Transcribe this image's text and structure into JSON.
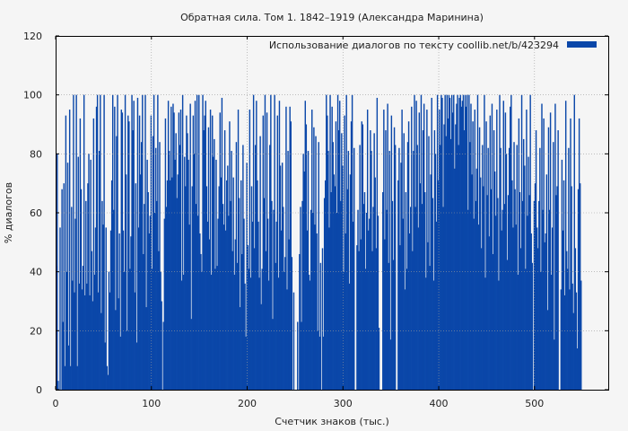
{
  "chart_data": {
    "type": "bar",
    "title": "Обратная сила. Том 1. 1842–1919 (Александра Маринина)",
    "xlabel": "Счетчик знаков (тыс.)",
    "ylabel": "% диалогов",
    "xlim": [
      0,
      577
    ],
    "ylim": [
      0,
      120
    ],
    "x_ticks": [
      0,
      100,
      200,
      300,
      400,
      500
    ],
    "y_ticks": [
      0,
      20,
      40,
      60,
      80,
      100,
      120
    ],
    "grid": true,
    "legend_position": "top-right",
    "series": [
      {
        "name": "Использование диалогов по тексту  coollib.net/b/423294",
        "color": "#0a47a9",
        "x_step": 1,
        "values": [
          42,
          80,
          3,
          0,
          55,
          0,
          68,
          23,
          70,
          8,
          93,
          40,
          77,
          15,
          95,
          8,
          62,
          37,
          100,
          33,
          58,
          100,
          8,
          79,
          36,
          92,
          68,
          34,
          42,
          100,
          32,
          64,
          36,
          70,
          80,
          32,
          78,
          47,
          30,
          92,
          39,
          55,
          96,
          100,
          33,
          81,
          100,
          26,
          64,
          56,
          100,
          16,
          55,
          8,
          5,
          40,
          33,
          54,
          71,
          100,
          61,
          96,
          27,
          86,
          100,
          31,
          53,
          18,
          95,
          94,
          54,
          40,
          100,
          73,
          20,
          93,
          91,
          41,
          52,
          100,
          88,
          98,
          33,
          70,
          16,
          99,
          55,
          93,
          73,
          84,
          100,
          46,
          63,
          100,
          28,
          78,
          67,
          53,
          59,
          93,
          41,
          86,
          100,
          60,
          82,
          64,
          100,
          47,
          84,
          40,
          30,
          0,
          23,
          58,
          92,
          62,
          71,
          98,
          81,
          71,
          96,
          72,
          97,
          94,
          78,
          87,
          65,
          73,
          94,
          83,
          95,
          37,
          100,
          39,
          79,
          69,
          93,
          87,
          78,
          56,
          97,
          24,
          69,
          93,
          80,
          98,
          63,
          100,
          59,
          100,
          53,
          46,
          40,
          100,
          88,
          93,
          98,
          69,
          57,
          89,
          51,
          95,
          39,
          93,
          79,
          85,
          41,
          78,
          42,
          58,
          69,
          94,
          72,
          99,
          63,
          56,
          88,
          54,
          71,
          76,
          59,
          91,
          64,
          81,
          47,
          72,
          39,
          51,
          84,
          43,
          95,
          65,
          28,
          71,
          46,
          83,
          58,
          36,
          18,
          77,
          49,
          41,
          95,
          38,
          69,
          57,
          100,
          48,
          83,
          98,
          71,
          57,
          38,
          86,
          29,
          41,
          93,
          65,
          100,
          47,
          94,
          58,
          37,
          83,
          100,
          64,
          24,
          61,
          100,
          43,
          57,
          93,
          38,
          98,
          76,
          54,
          77,
          62,
          40,
          45,
          96,
          34,
          81,
          51,
          96,
          91,
          45,
          0,
          33,
          0,
          0,
          0,
          23,
          0,
          46,
          62,
          23,
          64,
          80,
          74,
          98,
          90,
          54,
          81,
          39,
          37,
          61,
          95,
          60,
          89,
          56,
          86,
          53,
          20,
          84,
          18,
          43,
          0,
          48,
          18,
          65,
          71,
          100,
          93,
          81,
          55,
          100,
          67,
          96,
          84,
          73,
          69,
          91,
          60,
          100,
          88,
          98,
          64,
          87,
          76,
          40,
          93,
          53,
          100,
          68,
          81,
          36,
          73,
          91,
          100,
          57,
          82,
          0,
          0,
          49,
          61,
          47,
          83,
          51,
          91,
          90,
          63,
          67,
          41,
          60,
          95,
          54,
          58,
          88,
          81,
          47,
          62,
          87,
          72,
          48,
          99,
          59,
          21,
          0,
          0,
          0,
          67,
          95,
          51,
          88,
          61,
          97,
          43,
          81,
          17,
          93,
          64,
          44,
          89,
          83,
          0,
          0,
          71,
          82,
          49,
          77,
          95,
          58,
          87,
          34,
          67,
          41,
          84,
          91,
          53,
          62,
          96,
          47,
          81,
          100,
          62,
          98,
          83,
          55,
          94,
          70,
          100,
          63,
          88,
          97,
          67,
          38,
          95,
          50,
          86,
          42,
          73,
          99,
          65,
          37,
          88,
          80,
          57,
          100,
          71,
          95,
          83,
          100,
          99,
          62,
          90,
          100,
          86,
          100,
          92,
          100,
          99,
          85,
          100,
          94,
          100,
          75,
          90,
          97,
          100,
          83,
          99,
          100,
          96,
          98,
          100,
          88,
          100,
          96,
          100,
          61,
          100,
          84,
          97,
          73,
          91,
          58,
          95,
          64,
          75,
          100,
          56,
          89,
          72,
          48,
          83,
          69,
          100,
          38,
          91,
          66,
          82,
          52,
          93,
          68,
          97,
          46,
          88,
          74,
          59,
          95,
          65,
          37,
          100,
          82,
          54,
          61,
          98,
          63,
          94,
          80,
          44,
          66,
          82,
          96,
          100,
          71,
          55,
          84,
          68,
          56,
          83,
          39,
          92,
          67,
          48,
          100,
          64,
          85,
          76,
          41,
          95,
          59,
          79,
          66,
          100,
          53,
          43,
          0,
          64,
          70,
          88,
          55,
          48,
          64,
          82,
          40,
          97,
          61,
          92,
          50,
          53,
          73,
          27,
          89,
          61,
          94,
          39,
          55,
          84,
          17,
          97,
          66,
          69,
          88,
          0,
          0,
          34,
          78,
          54,
          71,
          32,
          98,
          47,
          41,
          82,
          34,
          92,
          69,
          36,
          26,
          100,
          48,
          33,
          14,
          68,
          92,
          70,
          37
        ]
      }
    ]
  }
}
